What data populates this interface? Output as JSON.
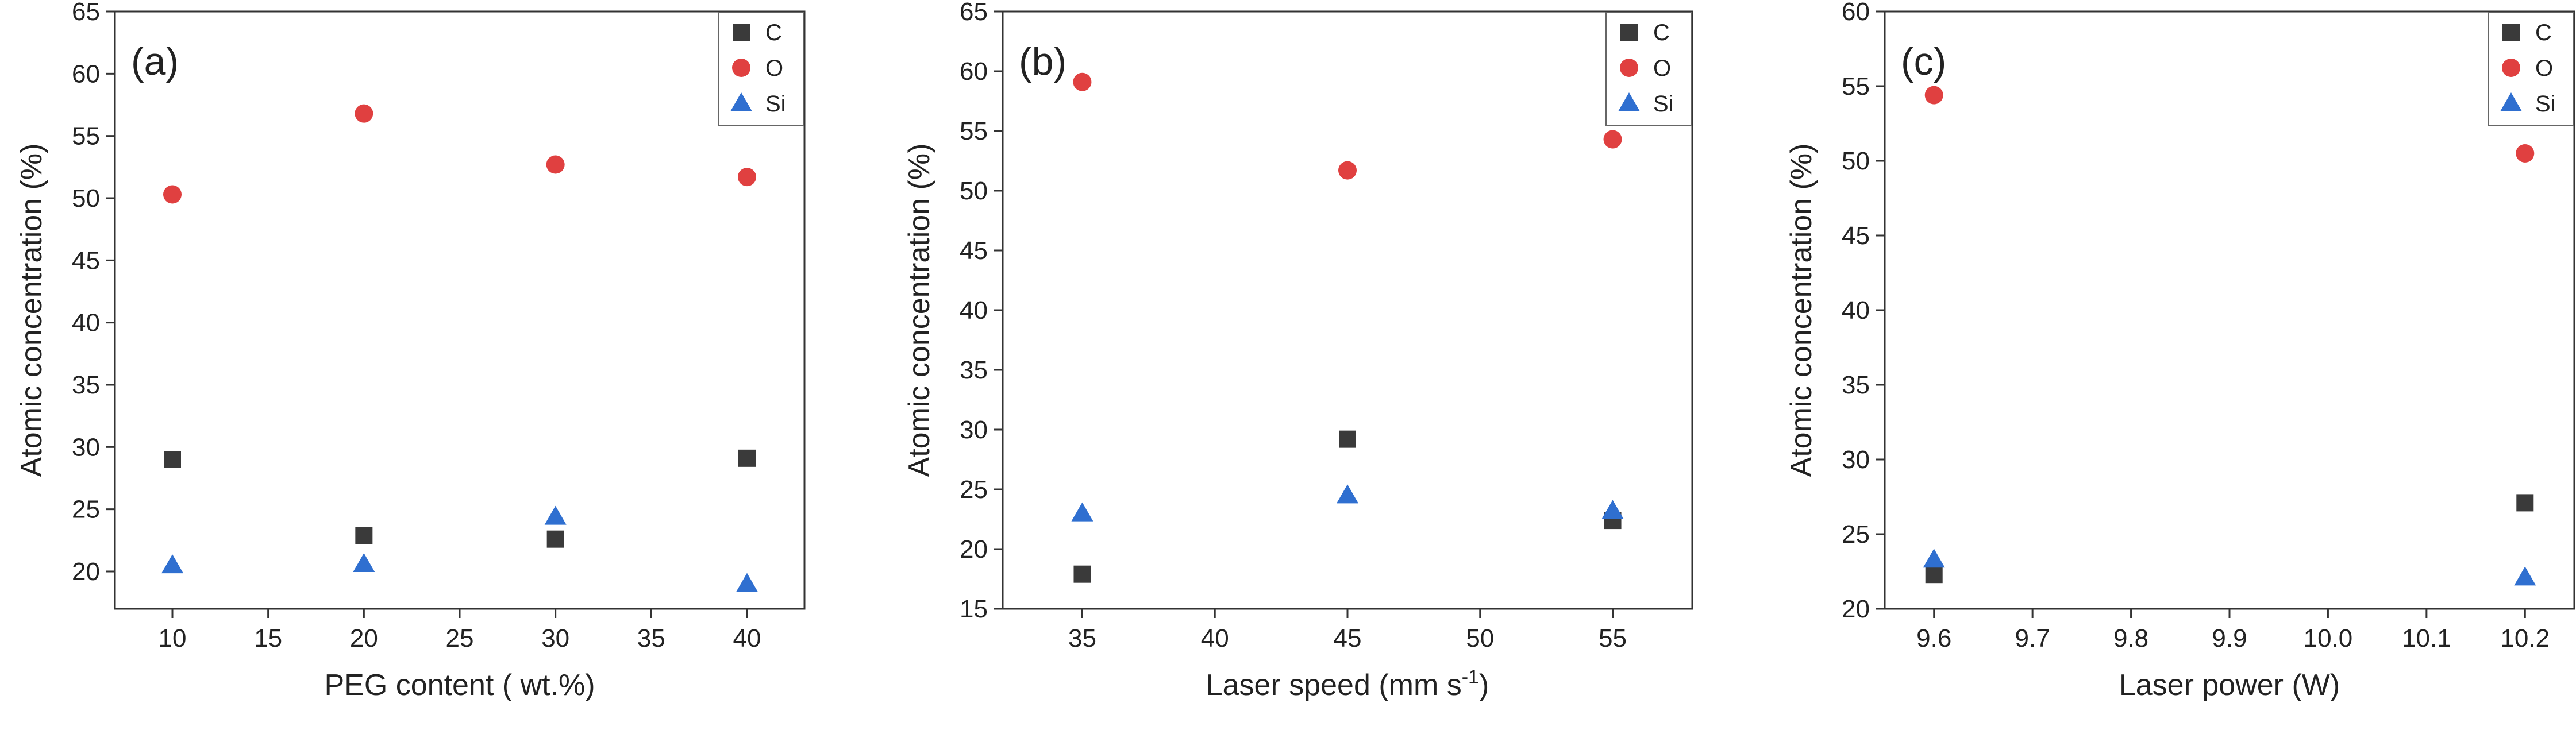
{
  "chart_data": [
    {
      "type": "scatter",
      "panel_label": "(a)",
      "xlabel": "PEG content ( wt.%)",
      "ylabel": "Atomic concentration (%)",
      "xlim": [
        7,
        43
      ],
      "ylim": [
        17,
        65
      ],
      "x_ticks": [
        10,
        15,
        20,
        25,
        30,
        35,
        40
      ],
      "x_tick_labels": [
        "10",
        "15",
        "20",
        "25",
        "30",
        "35",
        "40"
      ],
      "y_ticks": [
        20,
        25,
        30,
        35,
        40,
        45,
        50,
        55,
        60,
        65
      ],
      "y_tick_labels": [
        "20",
        "25",
        "30",
        "35",
        "40",
        "45",
        "50",
        "55",
        "60",
        "65"
      ],
      "legend_position": "top-right",
      "series": [
        {
          "name": "C",
          "marker": "square",
          "color": "#3a3a3a",
          "x": [
            10,
            20,
            30,
            40
          ],
          "y": [
            29.0,
            22.9,
            22.6,
            29.1
          ]
        },
        {
          "name": "O",
          "marker": "circle",
          "color": "#e04040",
          "x": [
            10,
            20,
            30,
            40
          ],
          "y": [
            50.3,
            56.8,
            52.7,
            51.7
          ]
        },
        {
          "name": "Si",
          "marker": "triangle",
          "color": "#2f6fd0",
          "x": [
            10,
            20,
            30,
            40
          ],
          "y": [
            20.5,
            20.6,
            24.4,
            19.0
          ]
        }
      ]
    },
    {
      "type": "scatter",
      "panel_label": "(b)",
      "xlabel": "Laser speed (mm s",
      "xlabel_sup": "-1",
      "xlabel_end": ")",
      "ylabel": "Atomic concentration (%)",
      "xlim": [
        32,
        58
      ],
      "ylim": [
        15,
        65
      ],
      "x_ticks": [
        35,
        40,
        45,
        50,
        55
      ],
      "x_tick_labels": [
        "35",
        "40",
        "45",
        "50",
        "55"
      ],
      "y_ticks": [
        15,
        20,
        25,
        30,
        35,
        40,
        45,
        50,
        55,
        60,
        65
      ],
      "y_tick_labels": [
        "15",
        "20",
        "25",
        "30",
        "35",
        "40",
        "45",
        "50",
        "55",
        "60",
        "65"
      ],
      "legend_position": "top-right",
      "series": [
        {
          "name": "C",
          "marker": "square",
          "color": "#3a3a3a",
          "x": [
            35,
            45,
            55
          ],
          "y": [
            17.9,
            29.2,
            22.4
          ]
        },
        {
          "name": "O",
          "marker": "circle",
          "color": "#e04040",
          "x": [
            35,
            45,
            55
          ],
          "y": [
            59.1,
            51.7,
            54.3
          ]
        },
        {
          "name": "Si",
          "marker": "triangle",
          "color": "#2f6fd0",
          "x": [
            35,
            45,
            55
          ],
          "y": [
            23.0,
            24.5,
            23.2
          ]
        }
      ]
    },
    {
      "type": "scatter",
      "panel_label": "(c)",
      "xlabel": "Laser power (W)",
      "ylabel": "Atomic concentration (%)",
      "xlim": [
        9.55,
        10.25
      ],
      "ylim": [
        20,
        60
      ],
      "x_ticks": [
        9.6,
        9.7,
        9.8,
        9.9,
        10.0,
        10.1,
        10.2
      ],
      "x_tick_labels": [
        "9.6",
        "9.7",
        "9.8",
        "9.9",
        "10.0",
        "10.1",
        "10.2"
      ],
      "y_ticks": [
        20,
        25,
        30,
        35,
        40,
        45,
        50,
        55,
        60
      ],
      "y_tick_labels": [
        "20",
        "25",
        "30",
        "35",
        "40",
        "45",
        "50",
        "55",
        "60"
      ],
      "legend_position": "top-right",
      "series": [
        {
          "name": "C",
          "marker": "square",
          "color": "#3a3a3a",
          "x": [
            9.6,
            10.2
          ],
          "y": [
            22.3,
            27.1
          ]
        },
        {
          "name": "O",
          "marker": "circle",
          "color": "#e04040",
          "x": [
            9.6,
            10.2
          ],
          "y": [
            54.4,
            50.5
          ]
        },
        {
          "name": "Si",
          "marker": "triangle",
          "color": "#2f6fd0",
          "x": [
            9.6,
            10.2
          ],
          "y": [
            23.3,
            22.1
          ]
        }
      ]
    }
  ]
}
